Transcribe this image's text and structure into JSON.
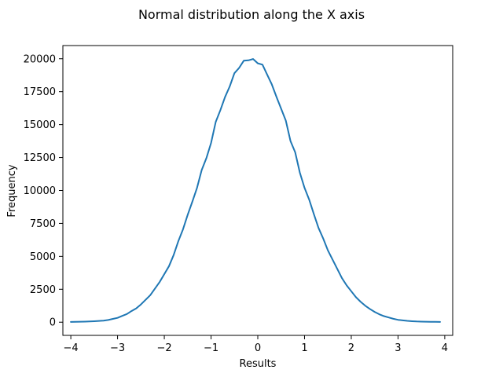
{
  "chart_data": {
    "type": "line",
    "title": "Normal distribution along the X axis",
    "xlabel": "Results",
    "ylabel": "Frequency",
    "xlim": [
      -4.17,
      4.17
    ],
    "ylim": [
      -1000,
      21000
    ],
    "xticks": [
      -4,
      -3,
      -2,
      -1,
      0,
      1,
      2,
      3,
      4
    ],
    "xtick_labels": [
      "−4",
      "−3",
      "−2",
      "−1",
      "0",
      "1",
      "2",
      "3",
      "4"
    ],
    "yticks": [
      0,
      2500,
      5000,
      7500,
      10000,
      12500,
      15000,
      17500,
      20000
    ],
    "ytick_labels": [
      "0",
      "2500",
      "5000",
      "7500",
      "10000",
      "12500",
      "15000",
      "17500",
      "20000"
    ],
    "grid": false,
    "color": "#1f77b4",
    "series": [
      {
        "x": [
          -4.0,
          -3.9,
          -3.8,
          -3.7,
          -3.6,
          -3.5,
          -3.4,
          -3.3,
          -3.2,
          -3.1,
          -3.0,
          -2.9,
          -2.8,
          -2.7,
          -2.6,
          -2.5,
          -2.4,
          -2.3,
          -2.2,
          -2.1,
          -2.0,
          -1.9,
          -1.8,
          -1.7,
          -1.6,
          -1.5,
          -1.4,
          -1.3,
          -1.2,
          -1.1,
          -1.0,
          -0.9,
          -0.8,
          -0.7,
          -0.6,
          -0.5,
          -0.4,
          -0.3,
          -0.2,
          -0.1,
          0.0,
          0.1,
          0.2,
          0.3,
          0.4,
          0.5,
          0.6,
          0.7,
          0.8,
          0.9,
          1.0,
          1.1,
          1.2,
          1.3,
          1.4,
          1.5,
          1.6,
          1.7,
          1.8,
          1.9,
          2.0,
          2.1,
          2.2,
          2.3,
          2.4,
          2.5,
          2.6,
          2.7,
          2.8,
          2.9,
          3.0,
          3.1,
          3.2,
          3.3,
          3.4,
          3.5,
          3.6,
          3.7,
          3.8,
          3.9
        ],
        "y": [
          20,
          25,
          35,
          45,
          60,
          75,
          95,
          120,
          170,
          250,
          330,
          480,
          620,
          850,
          1050,
          1350,
          1700,
          2050,
          2550,
          3050,
          3650,
          4250,
          5100,
          6150,
          7050,
          8150,
          9150,
          10200,
          11550,
          12450,
          13600,
          15200,
          16100,
          17100,
          17900,
          18900,
          19300,
          19850,
          19880,
          19980,
          19650,
          19550,
          18800,
          18050,
          17100,
          16200,
          15300,
          13750,
          12900,
          11350,
          10200,
          9300,
          8200,
          7150,
          6350,
          5450,
          4750,
          4050,
          3350,
          2800,
          2350,
          1900,
          1550,
          1250,
          1000,
          780,
          600,
          460,
          360,
          260,
          180,
          140,
          100,
          75,
          55,
          45,
          35,
          30,
          25,
          20
        ]
      }
    ]
  }
}
